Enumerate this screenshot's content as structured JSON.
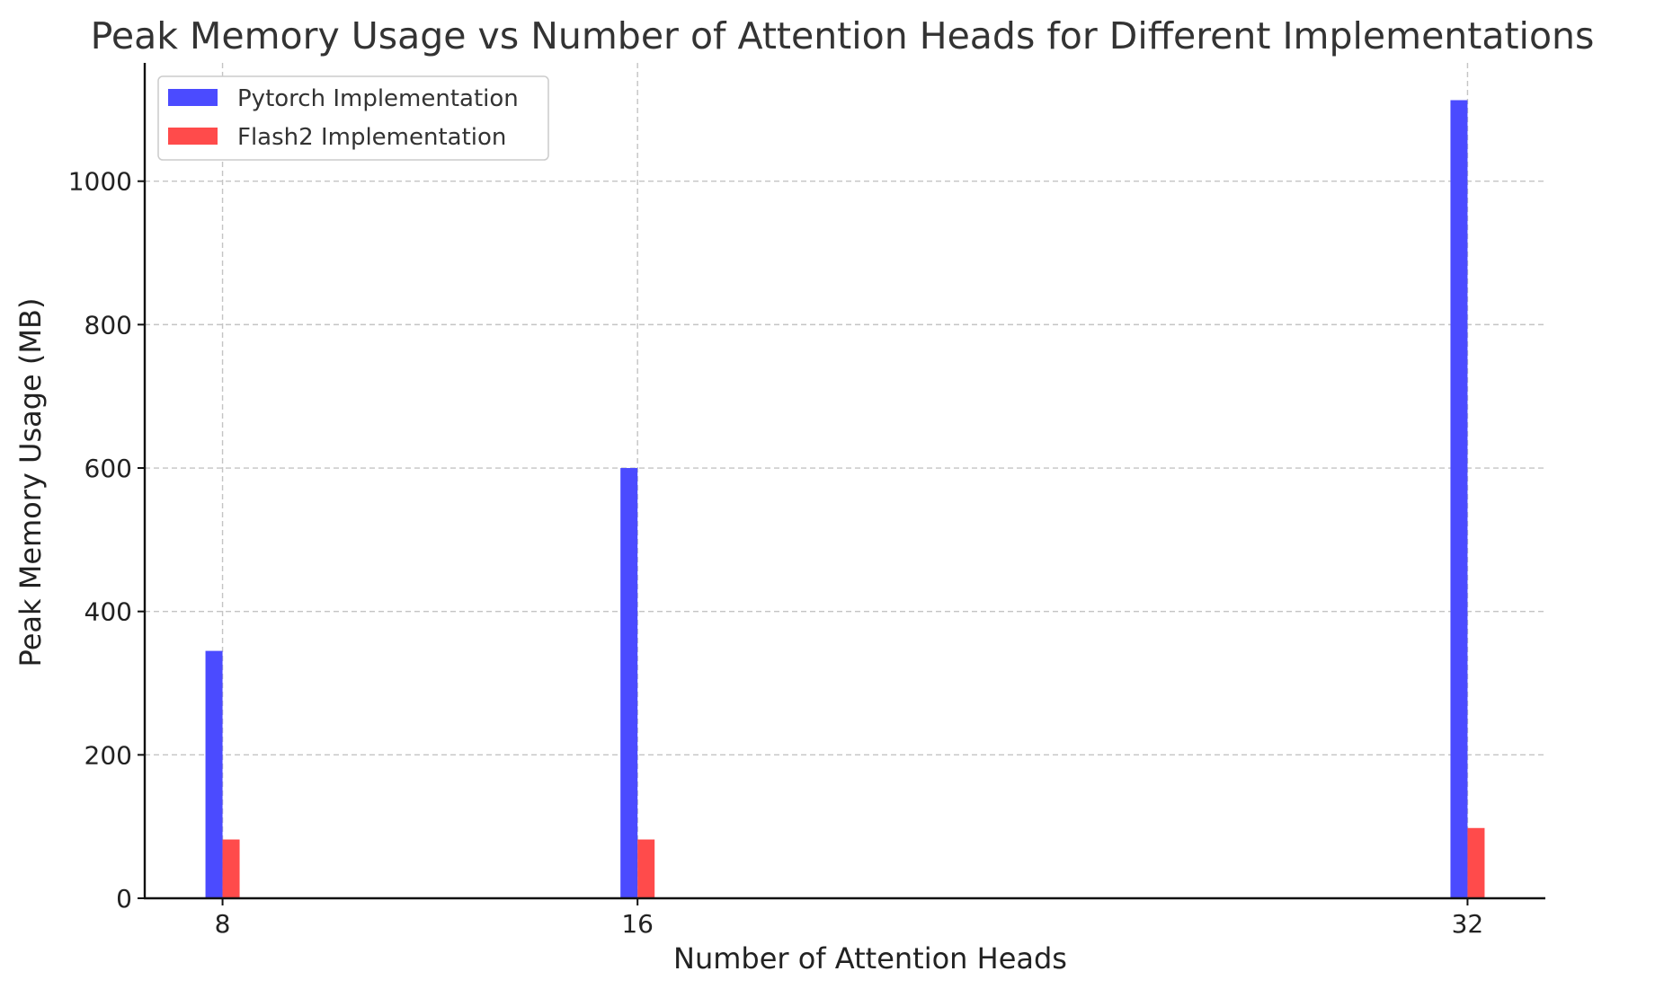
{
  "chart_data": {
    "type": "bar",
    "title": "Peak Memory Usage vs Number of Attention Heads for Different Implementations",
    "xlabel": "Number of Attention Heads",
    "ylabel": "Peak Memory Usage (MB)",
    "x": [
      8,
      16,
      32
    ],
    "x_tick_labels": [
      "8",
      "16",
      "32"
    ],
    "xlim": [
      6.5,
      33.5
    ],
    "ylim": [
      0,
      1165
    ],
    "y_ticks": [
      0,
      200,
      400,
      600,
      800,
      1000
    ],
    "y_tick_labels": [
      "0",
      "200",
      "400",
      "600",
      "800",
      "1000"
    ],
    "grid": true,
    "legend_position": "top-left",
    "series": [
      {
        "name": "Pytorch Implementation",
        "color": "#4b4bff",
        "values": [
          345,
          600,
          1113
        ]
      },
      {
        "name": "Flash2 Implementation",
        "color": "#ff4b4b",
        "values": [
          82,
          82,
          98
        ]
      }
    ]
  }
}
